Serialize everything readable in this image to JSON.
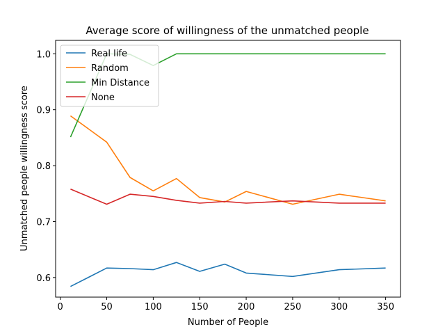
{
  "chart_data": {
    "type": "line",
    "title": "Average score of willingness of the unmatched people",
    "xlabel": "Number of People",
    "ylabel": "Unmatched people willingness score",
    "xlim": [
      -5,
      366
    ],
    "ylim": [
      0.565,
      1.024
    ],
    "xticks": [
      0,
      50,
      100,
      150,
      200,
      250,
      300,
      350
    ],
    "yticks": [
      0.6,
      0.7,
      0.8,
      0.9,
      1.0
    ],
    "ytick_labels": [
      "0.6",
      "0.7",
      "0.8",
      "0.9",
      "1.0"
    ],
    "grid": false,
    "legend_position": "top-left",
    "series": [
      {
        "name": "Real life",
        "color": "#1f77b4",
        "x": [
          11,
          50,
          75,
          100,
          125,
          150,
          177,
          200,
          250,
          300,
          350
        ],
        "y": [
          0.584,
          0.617,
          0.616,
          0.614,
          0.627,
          0.611,
          0.624,
          0.608,
          0.602,
          0.614,
          0.617
        ]
      },
      {
        "name": "Random",
        "color": "#ff7f0e",
        "x": [
          11,
          50,
          75,
          100,
          125,
          150,
          177,
          200,
          250,
          300,
          350
        ],
        "y": [
          0.889,
          0.842,
          0.779,
          0.755,
          0.777,
          0.743,
          0.735,
          0.754,
          0.731,
          0.749,
          0.737
        ]
      },
      {
        "name": "Min Distance",
        "color": "#2ca02c",
        "x": [
          11,
          50,
          75,
          100,
          125,
          150,
          177,
          200,
          250,
          300,
          350
        ],
        "y": [
          0.851,
          1.0,
          0.999,
          0.979,
          1.0,
          1.0,
          1.0,
          1.0,
          1.0,
          1.0,
          1.0
        ]
      },
      {
        "name": "None",
        "color": "#d62728",
        "x": [
          11,
          50,
          75,
          100,
          125,
          150,
          177,
          200,
          250,
          300,
          350
        ],
        "y": [
          0.758,
          0.731,
          0.749,
          0.745,
          0.738,
          0.733,
          0.736,
          0.733,
          0.737,
          0.733,
          0.733
        ]
      }
    ]
  }
}
